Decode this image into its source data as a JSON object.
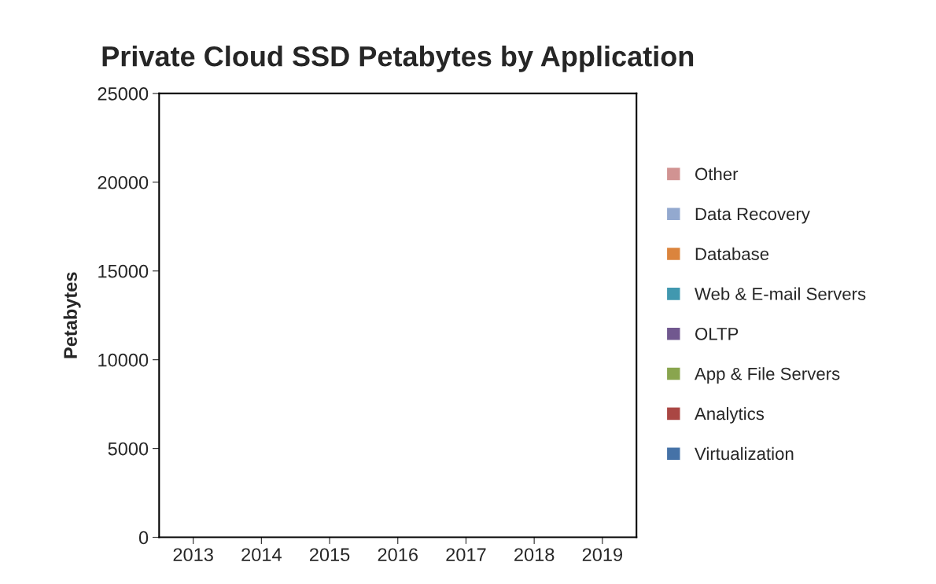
{
  "chart_data": {
    "type": "bar",
    "title": "Private Cloud SSD Petabytes by Application",
    "ylabel": "Petabytes",
    "categories": [
      "2013",
      "2014",
      "2015",
      "2016",
      "2017",
      "2018",
      "2019"
    ],
    "ylim": [
      0,
      25000
    ],
    "yticks": [
      0,
      5000,
      10000,
      15000,
      20000,
      25000
    ],
    "legend": "right",
    "series": [
      {
        "name": "Virtualization",
        "color": "#4572a7",
        "values": [
          60,
          60,
          60,
          60,
          60,
          60,
          60
        ]
      },
      {
        "name": "Analytics",
        "color": "#aa4643",
        "values": [
          null,
          null,
          null,
          null,
          null,
          null,
          null
        ]
      },
      {
        "name": "App & File Servers",
        "color": "#89a54e",
        "values": [
          null,
          null,
          null,
          null,
          null,
          null,
          null
        ]
      },
      {
        "name": "OLTP",
        "color": "#71588f",
        "values": [
          null,
          null,
          null,
          null,
          null,
          null,
          null
        ]
      },
      {
        "name": "Web & E-mail Servers",
        "color": "#4198af",
        "values": [
          null,
          null,
          null,
          null,
          null,
          null,
          null
        ]
      },
      {
        "name": "Database",
        "color": "#db843d",
        "values": [
          null,
          null,
          null,
          null,
          null,
          null,
          null
        ]
      },
      {
        "name": "Data Recovery",
        "color": "#93a9cf",
        "values": [
          null,
          null,
          null,
          null,
          null,
          null,
          null
        ]
      },
      {
        "name": "Other",
        "color": "#d19392",
        "values": [
          null,
          null,
          null,
          null,
          null,
          null,
          null
        ]
      }
    ]
  }
}
